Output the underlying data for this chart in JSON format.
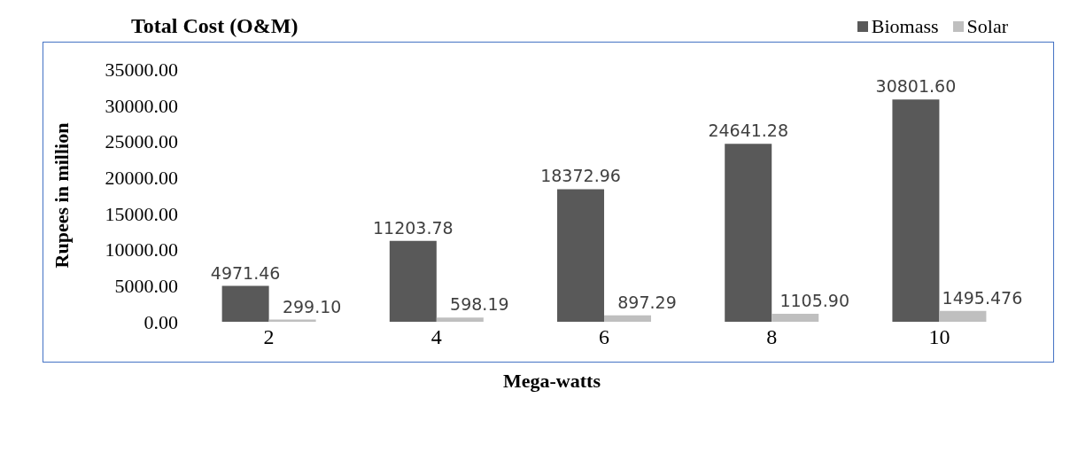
{
  "chart_data": {
    "type": "bar",
    "title": "Total Cost (O&M)",
    "xlabel": "Mega-watts",
    "ylabel": "Rupees in million",
    "categories": [
      "2",
      "4",
      "6",
      "8",
      "10"
    ],
    "series": [
      {
        "name": "Biomass",
        "color": "#595959",
        "values": [
          4971.46,
          11203.78,
          18372.96,
          24641.28,
          30801.6
        ],
        "value_labels": [
          "4971.46",
          "11203.78",
          "18372.96",
          "24641.28",
          "30801.60"
        ]
      },
      {
        "name": "Solar",
        "color": "#bfbfbf",
        "values": [
          299.1,
          598.19,
          897.29,
          1105.9,
          1495.476
        ],
        "value_labels": [
          "299.10",
          "598.19",
          "897.29",
          "1105.90",
          "1495.476"
        ]
      }
    ],
    "ylim": [
      0,
      35000
    ],
    "yticks": [
      {
        "value": 0,
        "label": "0.00"
      },
      {
        "value": 5000,
        "label": "5000.00"
      },
      {
        "value": 10000,
        "label": "10000.00"
      },
      {
        "value": 15000,
        "label": "15000.00"
      },
      {
        "value": 20000,
        "label": "20000.00"
      },
      {
        "value": 25000,
        "label": "25000.00"
      },
      {
        "value": 30000,
        "label": "30000.00"
      },
      {
        "value": 35000,
        "label": "35000.00"
      }
    ],
    "grid": false,
    "legend": "top right"
  }
}
